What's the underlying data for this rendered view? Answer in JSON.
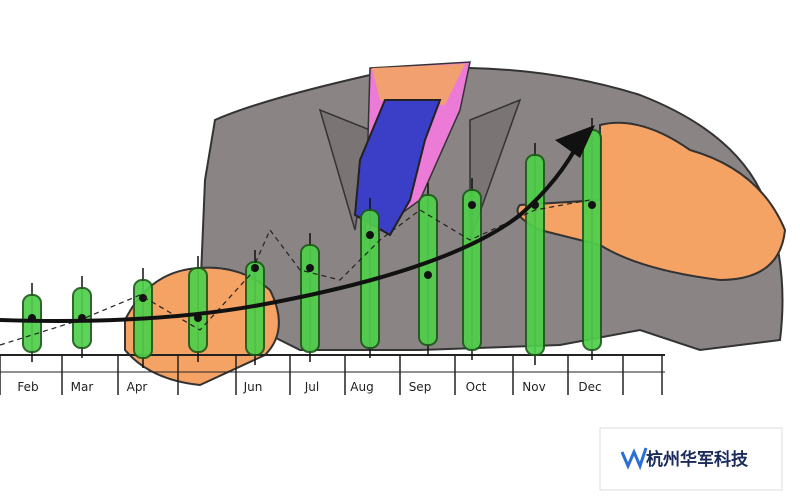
{
  "axis_labels": [
    "Feb",
    "Mar",
    "Apr",
    "Jun",
    "Jul",
    "Aug",
    "Sep",
    "Oct",
    "Nov",
    "Dec"
  ],
  "watermark": "杭州华军科技"
}
